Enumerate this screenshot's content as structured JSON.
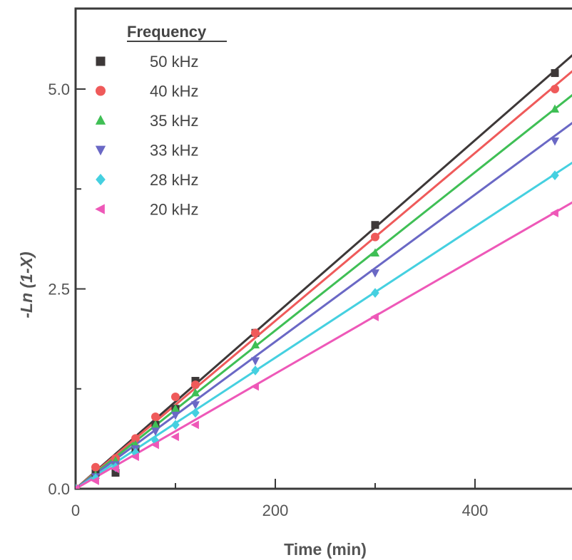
{
  "chart_data": {
    "type": "line",
    "xlabel": "Time (min)",
    "ylabel": "-Ln (1-X)",
    "xlim": [
      0,
      500
    ],
    "ylim": [
      0,
      6
    ],
    "x_ticks": [
      0,
      200,
      400
    ],
    "y_ticks": [
      0.0,
      2.5,
      5.0
    ],
    "x_tick_labels": [
      "0",
      "200",
      "400"
    ],
    "y_tick_labels": [
      "0.0",
      "2.5",
      "5.0"
    ],
    "grid": false,
    "legend": {
      "title": "Frequency",
      "placement": "top-left"
    },
    "series": [
      {
        "name": "50 kHz",
        "marker": "square",
        "color": "#3d3838",
        "x": [
          0,
          20,
          40,
          60,
          80,
          100,
          120,
          180,
          300,
          480
        ],
        "y": [
          0.0,
          0.2,
          0.2,
          0.5,
          0.8,
          1.0,
          1.35,
          1.95,
          3.3,
          5.2
        ],
        "fit_slope": 0.0109
      },
      {
        "name": "40 kHz",
        "marker": "circle",
        "color": "#ef5a5a",
        "x": [
          0,
          20,
          40,
          60,
          80,
          100,
          120,
          180,
          300,
          480
        ],
        "y": [
          0.0,
          0.27,
          0.38,
          0.63,
          0.9,
          1.15,
          1.3,
          1.95,
          3.15,
          5.0
        ],
        "fit_slope": 0.0105
      },
      {
        "name": "35 kHz",
        "marker": "triangle-up",
        "color": "#3fbf55",
        "x": [
          0,
          20,
          40,
          60,
          80,
          100,
          120,
          180,
          300,
          480
        ],
        "y": [
          0.0,
          0.17,
          0.35,
          0.55,
          0.8,
          1.0,
          1.2,
          1.8,
          2.95,
          4.75
        ],
        "fit_slope": 0.0099
      },
      {
        "name": "33 kHz",
        "marker": "triangle-down",
        "color": "#6a68c5",
        "x": [
          0,
          20,
          40,
          60,
          80,
          100,
          120,
          180,
          300,
          480
        ],
        "y": [
          0.0,
          0.15,
          0.3,
          0.5,
          0.72,
          0.92,
          1.05,
          1.6,
          2.7,
          4.35
        ],
        "fit_slope": 0.0092
      },
      {
        "name": "28 kHz",
        "marker": "diamond",
        "color": "#45d0e0",
        "x": [
          0,
          20,
          40,
          60,
          80,
          100,
          120,
          180,
          300,
          480
        ],
        "y": [
          0.0,
          0.13,
          0.27,
          0.45,
          0.6,
          0.8,
          0.95,
          1.48,
          2.45,
          3.92
        ],
        "fit_slope": 0.0082
      },
      {
        "name": "20 kHz",
        "marker": "triangle-left",
        "color": "#ee58b8",
        "x": [
          0,
          20,
          40,
          60,
          80,
          100,
          120,
          180,
          300,
          480
        ],
        "y": [
          0.0,
          0.1,
          0.25,
          0.4,
          0.55,
          0.65,
          0.8,
          1.28,
          2.15,
          3.45
        ],
        "fit_slope": 0.0072
      }
    ]
  }
}
